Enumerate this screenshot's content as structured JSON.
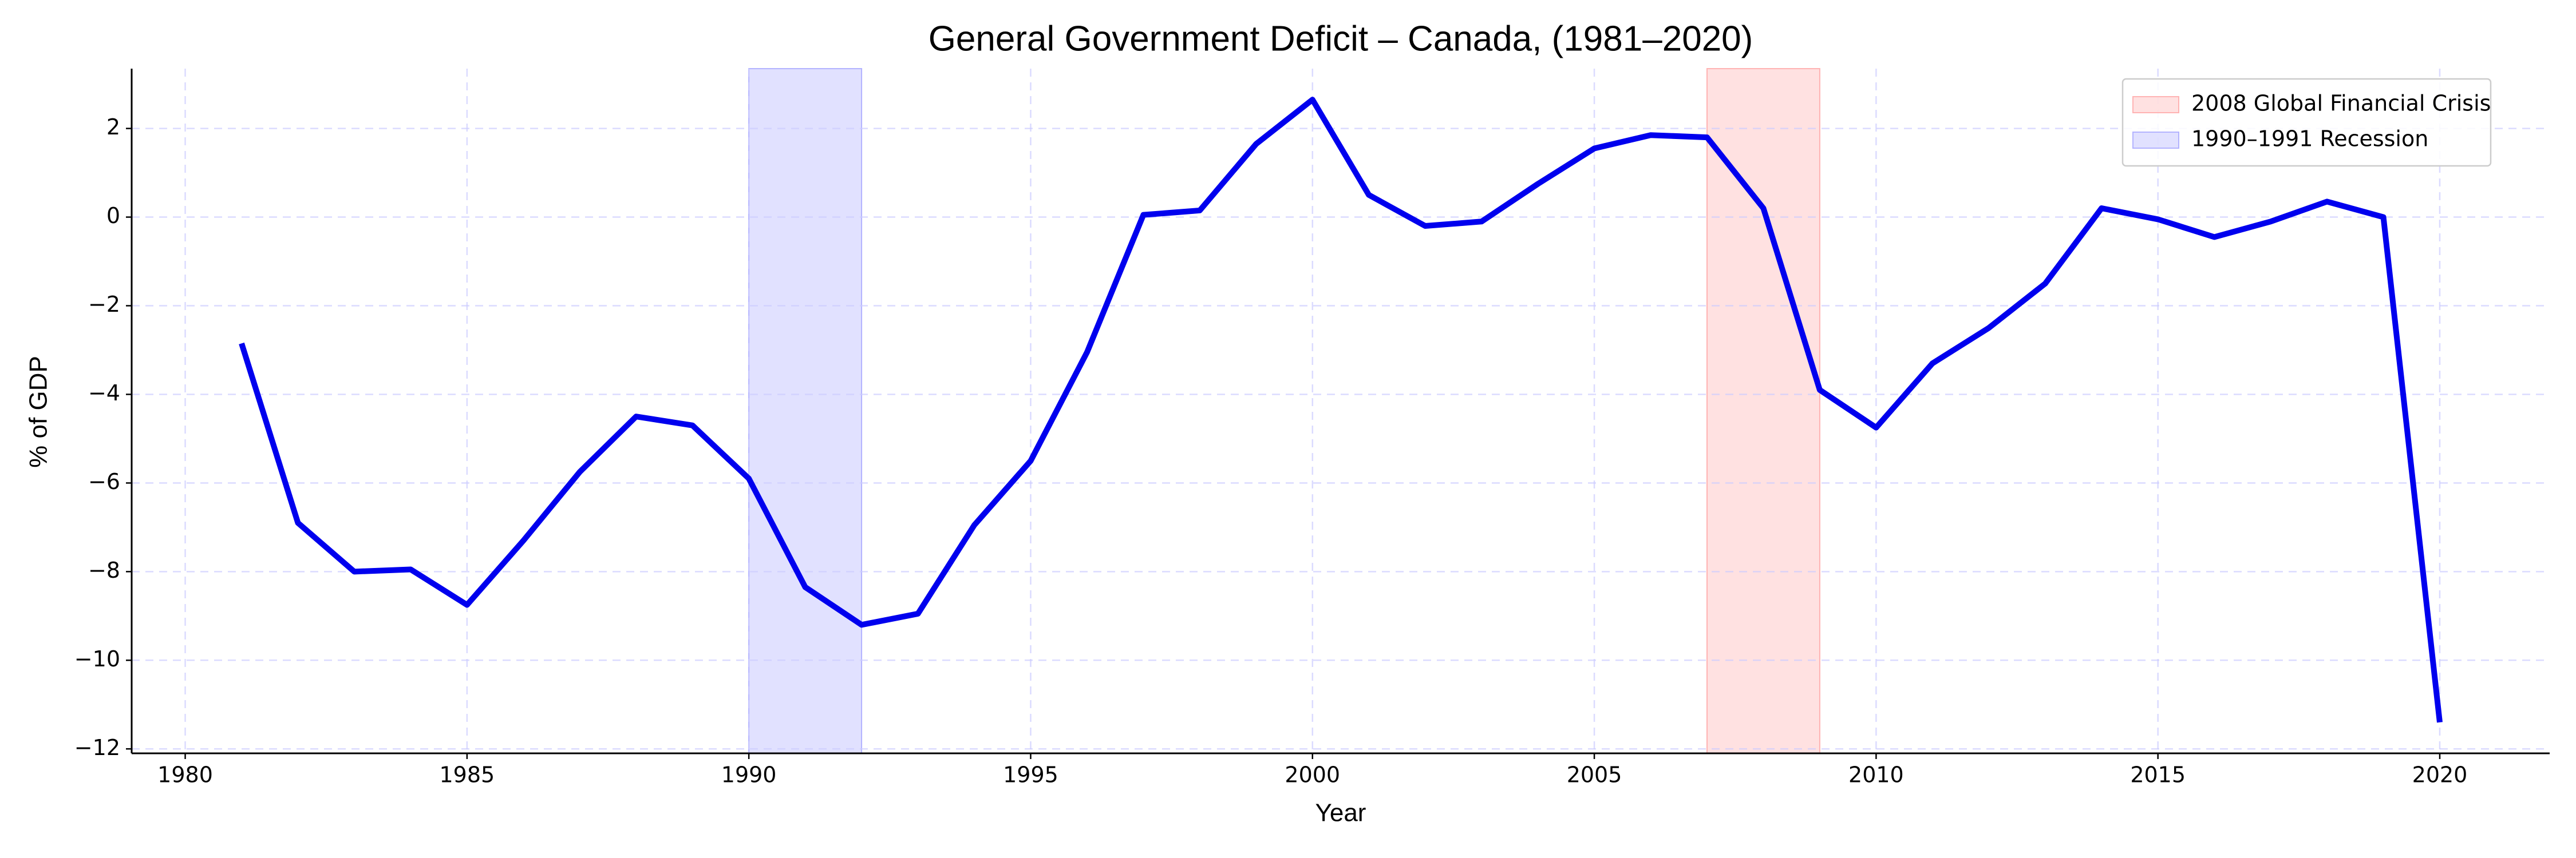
{
  "chart_data": {
    "type": "line",
    "title": "General Government Deficit – Canada, (1981–2020)",
    "x_label": "Year",
    "y_label": "% of GDP",
    "x": [
      1981,
      1982,
      1983,
      1984,
      1985,
      1986,
      1987,
      1988,
      1989,
      1990,
      1991,
      1992,
      1993,
      1994,
      1995,
      1996,
      1997,
      1998,
      1999,
      2000,
      2001,
      2002,
      2003,
      2004,
      2005,
      2006,
      2007,
      2008,
      2009,
      2010,
      2011,
      2012,
      2013,
      2014,
      2015,
      2016,
      2017,
      2018,
      2019,
      2020
    ],
    "series": [
      {
        "name": "% of GDP",
        "color": "#0000ee",
        "values": [
          -2.85,
          -6.9,
          -8.0,
          -7.95,
          -8.75,
          -7.3,
          -5.75,
          -4.5,
          -4.7,
          -5.9,
          -8.35,
          -9.2,
          -8.95,
          -6.95,
          -5.5,
          -3.05,
          0.05,
          0.15,
          1.65,
          2.65,
          0.5,
          -0.2,
          -0.1,
          0.75,
          1.55,
          1.85,
          1.8,
          0.2,
          -3.9,
          -4.75,
          -3.3,
          -2.5,
          -1.5,
          0.2,
          -0.05,
          -0.45,
          -0.1,
          0.35,
          0.0,
          -11.4
        ]
      }
    ],
    "spans": [
      {
        "name": "2008 Global Financial Crisis",
        "color": "#ffb3b3",
        "x": [
          2007,
          2009
        ]
      },
      {
        "name": "1990–1991 Recession",
        "color": "#b3b3ff",
        "x": [
          1990,
          1992
        ]
      }
    ],
    "xlim": [
      1979.05,
      2021.95
    ],
    "ylim": [
      -12.1,
      3.35
    ],
    "xticks": [
      1980,
      1985,
      1990,
      1995,
      2000,
      2005,
      2010,
      2015,
      2020
    ],
    "yticks": [
      {
        "value": -12,
        "label": "−12"
      },
      {
        "value": -10,
        "label": "−10"
      },
      {
        "value": -8,
        "label": "−8"
      },
      {
        "value": -6,
        "label": "−6"
      },
      {
        "value": -4,
        "label": "−4"
      },
      {
        "value": -2,
        "label": "−2"
      },
      0,
      2
    ],
    "grid": true,
    "legend": "upper right"
  }
}
